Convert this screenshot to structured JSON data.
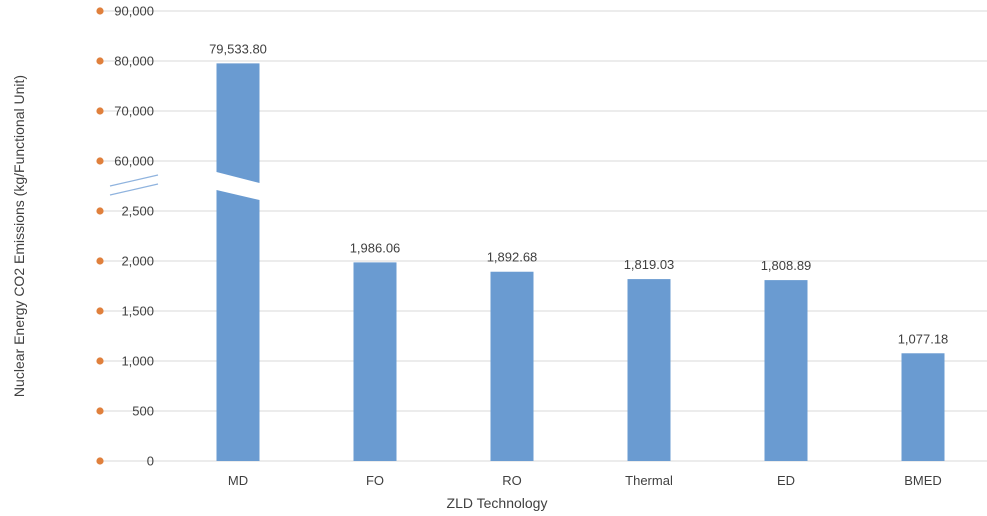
{
  "chart_data": {
    "type": "bar",
    "title": "",
    "xlabel": "ZLD Technology",
    "ylabel": "Nuclear Energy CO2 Emissions (kg/Functional Unit)",
    "categories": [
      "MD",
      "FO",
      "RO",
      "Thermal",
      "ED",
      "BMED"
    ],
    "values": [
      79533.8,
      1986.06,
      1892.68,
      1819.03,
      1808.89,
      1077.18
    ],
    "data_labels": [
      "79,533.80",
      "1,986.06",
      "1,892.68",
      "1,819.03",
      "1,808.89",
      "1,077.18"
    ],
    "broken_axis": true,
    "lower_range": [
      0,
      2500
    ],
    "upper_range": [
      60000,
      90000
    ],
    "lower_ticks": [
      0,
      500,
      1000,
      1500,
      2000,
      2500
    ],
    "upper_ticks": [
      60000,
      70000,
      80000,
      90000
    ],
    "lower_tick_labels": [
      "0",
      "500",
      "1,000",
      "1,500",
      "2,000",
      "2,500"
    ],
    "upper_tick_labels": [
      "60,000",
      "70,000",
      "80,000",
      "90,000"
    ],
    "grid": true,
    "legend": "none",
    "colors": {
      "bar": "#6A9BD1",
      "tick_marker": "#E0803C",
      "grid": "#D9D9D9",
      "text": "#404040"
    }
  }
}
